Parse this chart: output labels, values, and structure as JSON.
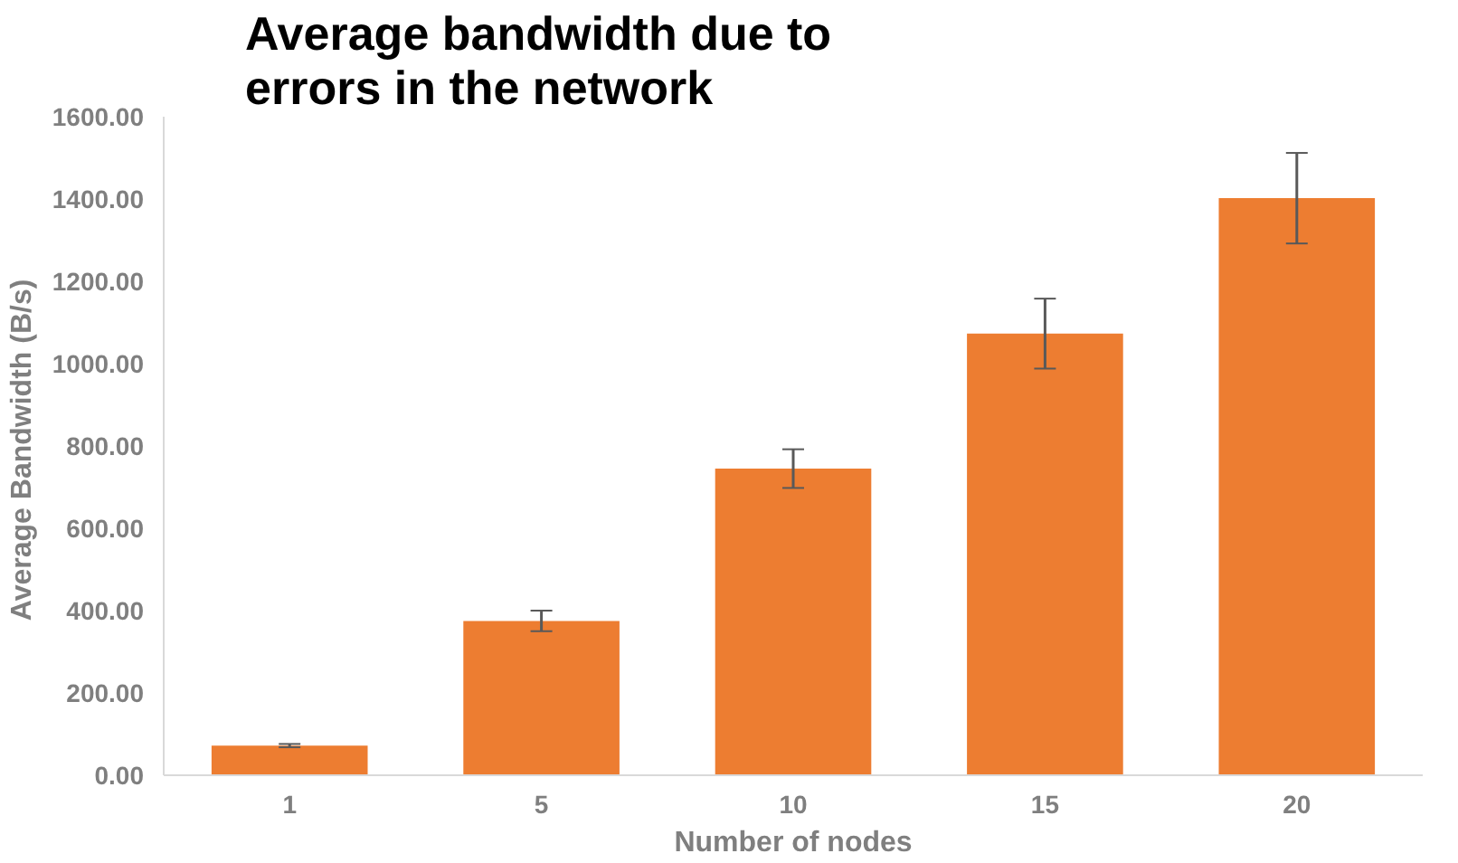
{
  "chart_data": {
    "type": "bar",
    "title": "Average bandwidth due to errors in the network",
    "xlabel": "Number of nodes",
    "ylabel": "Average  Bandwidth (B/s)",
    "categories": [
      "1",
      "5",
      "10",
      "15",
      "20"
    ],
    "values": [
      72,
      375,
      745,
      1073,
      1402
    ],
    "errors": [
      4,
      25,
      47,
      85,
      110
    ],
    "color": "#ed7d31",
    "ylim": [
      0,
      1600
    ],
    "yticks": [
      {
        "value": 0,
        "label": "0.00"
      },
      {
        "value": 200,
        "label": "200.00"
      },
      {
        "value": 400,
        "label": "400.00"
      },
      {
        "value": 600,
        "label": "600.00"
      },
      {
        "value": 800,
        "label": "800.00"
      },
      {
        "value": 1000,
        "label": "1000.00"
      },
      {
        "value": 1200,
        "label": "1200.00"
      },
      {
        "value": 1400,
        "label": "1400.00"
      },
      {
        "value": 1600,
        "label": "1600.00"
      }
    ],
    "grid": false
  }
}
